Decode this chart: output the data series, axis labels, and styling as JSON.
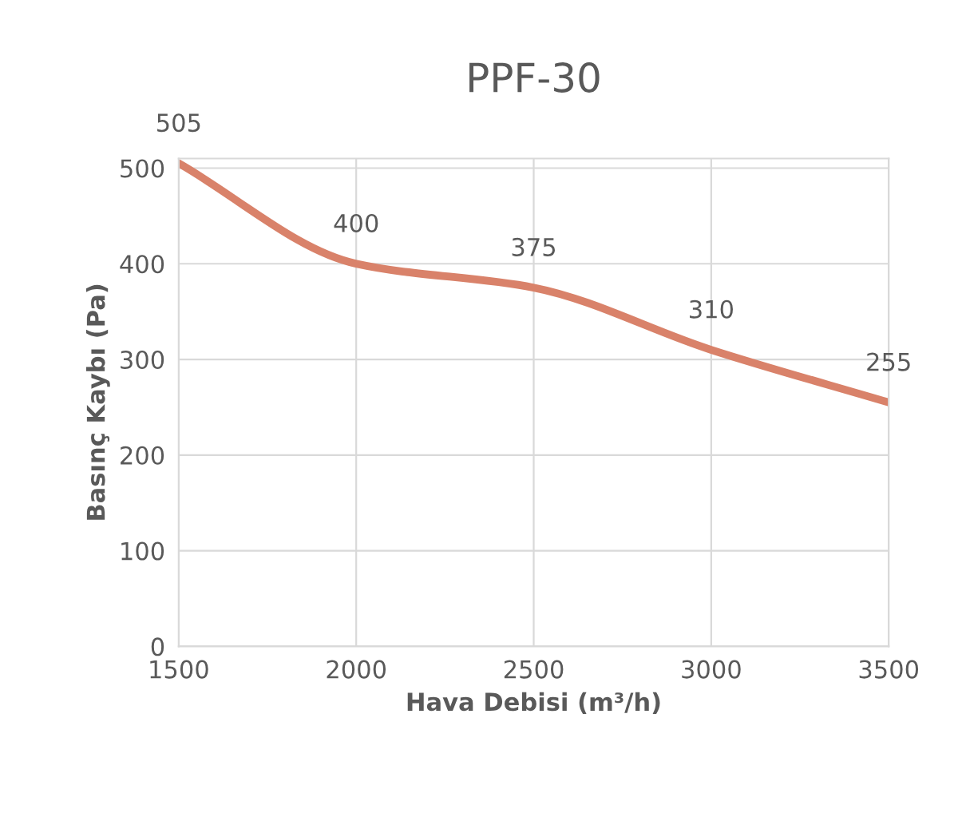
{
  "chart_data": {
    "type": "line",
    "title": "PPF-30",
    "xlabel": "Hava Debisi (m³/h)",
    "ylabel": "Basınç Kaybı (Pa)",
    "x": [
      1500,
      2000,
      2500,
      3000,
      3500
    ],
    "series": [
      {
        "color": "#d9826a",
        "values": [
          505,
          400,
          375,
          310,
          255
        ]
      }
    ],
    "xlim": [
      1500,
      3500
    ],
    "xticks": [
      1500,
      2000,
      2500,
      3000,
      3500
    ],
    "ylim": [
      0,
      510
    ],
    "yticks": [
      0,
      100,
      200,
      300,
      400,
      500
    ],
    "grid": true,
    "data_labels": true,
    "marker": "none",
    "line_style": "solid"
  }
}
